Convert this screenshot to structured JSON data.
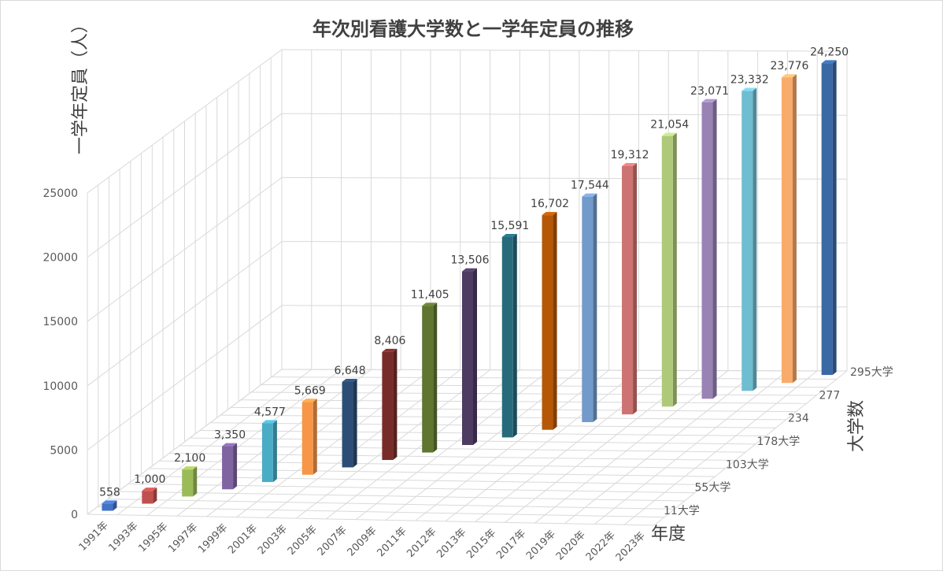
{
  "chart_data": {
    "type": "bar",
    "title": "年次別看護大学数と一学年定員の推移",
    "ylabel": "一学年定員（人）",
    "xlabel": "年度",
    "zlabel": "大学数",
    "ylim": [
      0,
      25000
    ],
    "yticks": [
      "0",
      "5000",
      "10000",
      "15000",
      "20000",
      "25000"
    ],
    "grid": true,
    "legend": "none",
    "categories": [
      "1991年",
      "1993年",
      "1995年",
      "1997年",
      "1999年",
      "2001年",
      "2003年",
      "2005年",
      "2007年",
      "2009年",
      "2011年",
      "2012年",
      "2013年",
      "2015年",
      "2017年",
      "2019年",
      "2020年",
      "2022年",
      "2023年"
    ],
    "values": [
      558,
      1000,
      2100,
      3350,
      4577,
      5669,
      6648,
      8406,
      11405,
      13506,
      15591,
      16702,
      17544,
      19312,
      21054,
      23071,
      23332,
      23776,
      24250
    ],
    "data_labels": [
      "558",
      "1,000",
      "2,100",
      "3,350",
      "4,577",
      "5,669",
      "6,648",
      "8,406",
      "11,405",
      "13,506",
      "15,591",
      "16,702",
      "17,544",
      "19,312",
      "21,054",
      "23,071",
      "23,332",
      "23,776",
      "24,250"
    ],
    "depth_labels": [
      "11大学",
      "55大学",
      "103大学",
      "178大学",
      "234",
      "277",
      "295大学"
    ],
    "colors": [
      "#4472c4",
      "#c0504d",
      "#9bbb59",
      "#8064a2",
      "#4bacc6",
      "#f79646",
      "#2c4d75",
      "#772c2a",
      "#5f7530",
      "#4d3b62",
      "#276a7c",
      "#b65708",
      "#729aca",
      "#cd7371",
      "#afc97a",
      "#9983b5",
      "#6fbdd1",
      "#f9ab6b",
      "#3a6aa6"
    ]
  }
}
